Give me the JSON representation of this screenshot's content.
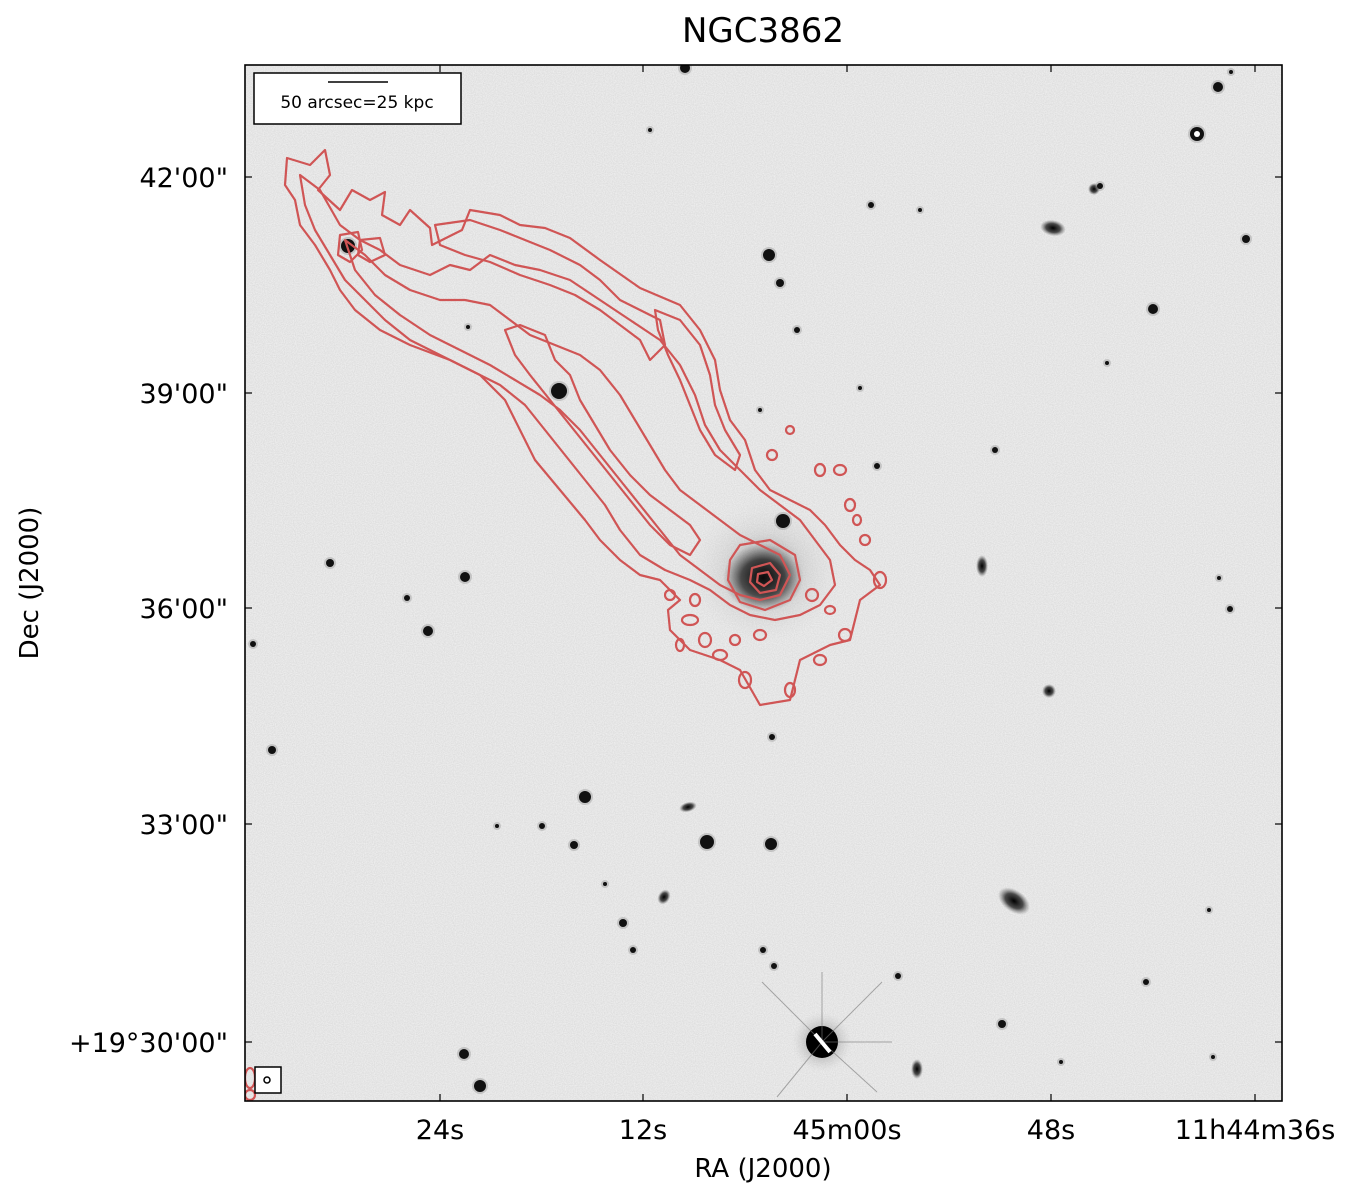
{
  "chart_data": {
    "type": "image",
    "title": "NGC3862",
    "xlabel": "RA (J2000)",
    "ylabel": "Dec (J2000)",
    "x_ticks": [
      "24s",
      "12s",
      "45m00s",
      "48s",
      "11h44m36s"
    ],
    "y_ticks": [
      "42'00\"",
      "39'00\"",
      "36'00\"",
      "33'00\"",
      "+19°30'00\""
    ],
    "scale_bar_label": "50 arcsec=25 kpc",
    "background": "grayscale optical image (inverted)",
    "overlay": "radio continuum contours",
    "contour_color": "#d05555",
    "grid": false
  }
}
